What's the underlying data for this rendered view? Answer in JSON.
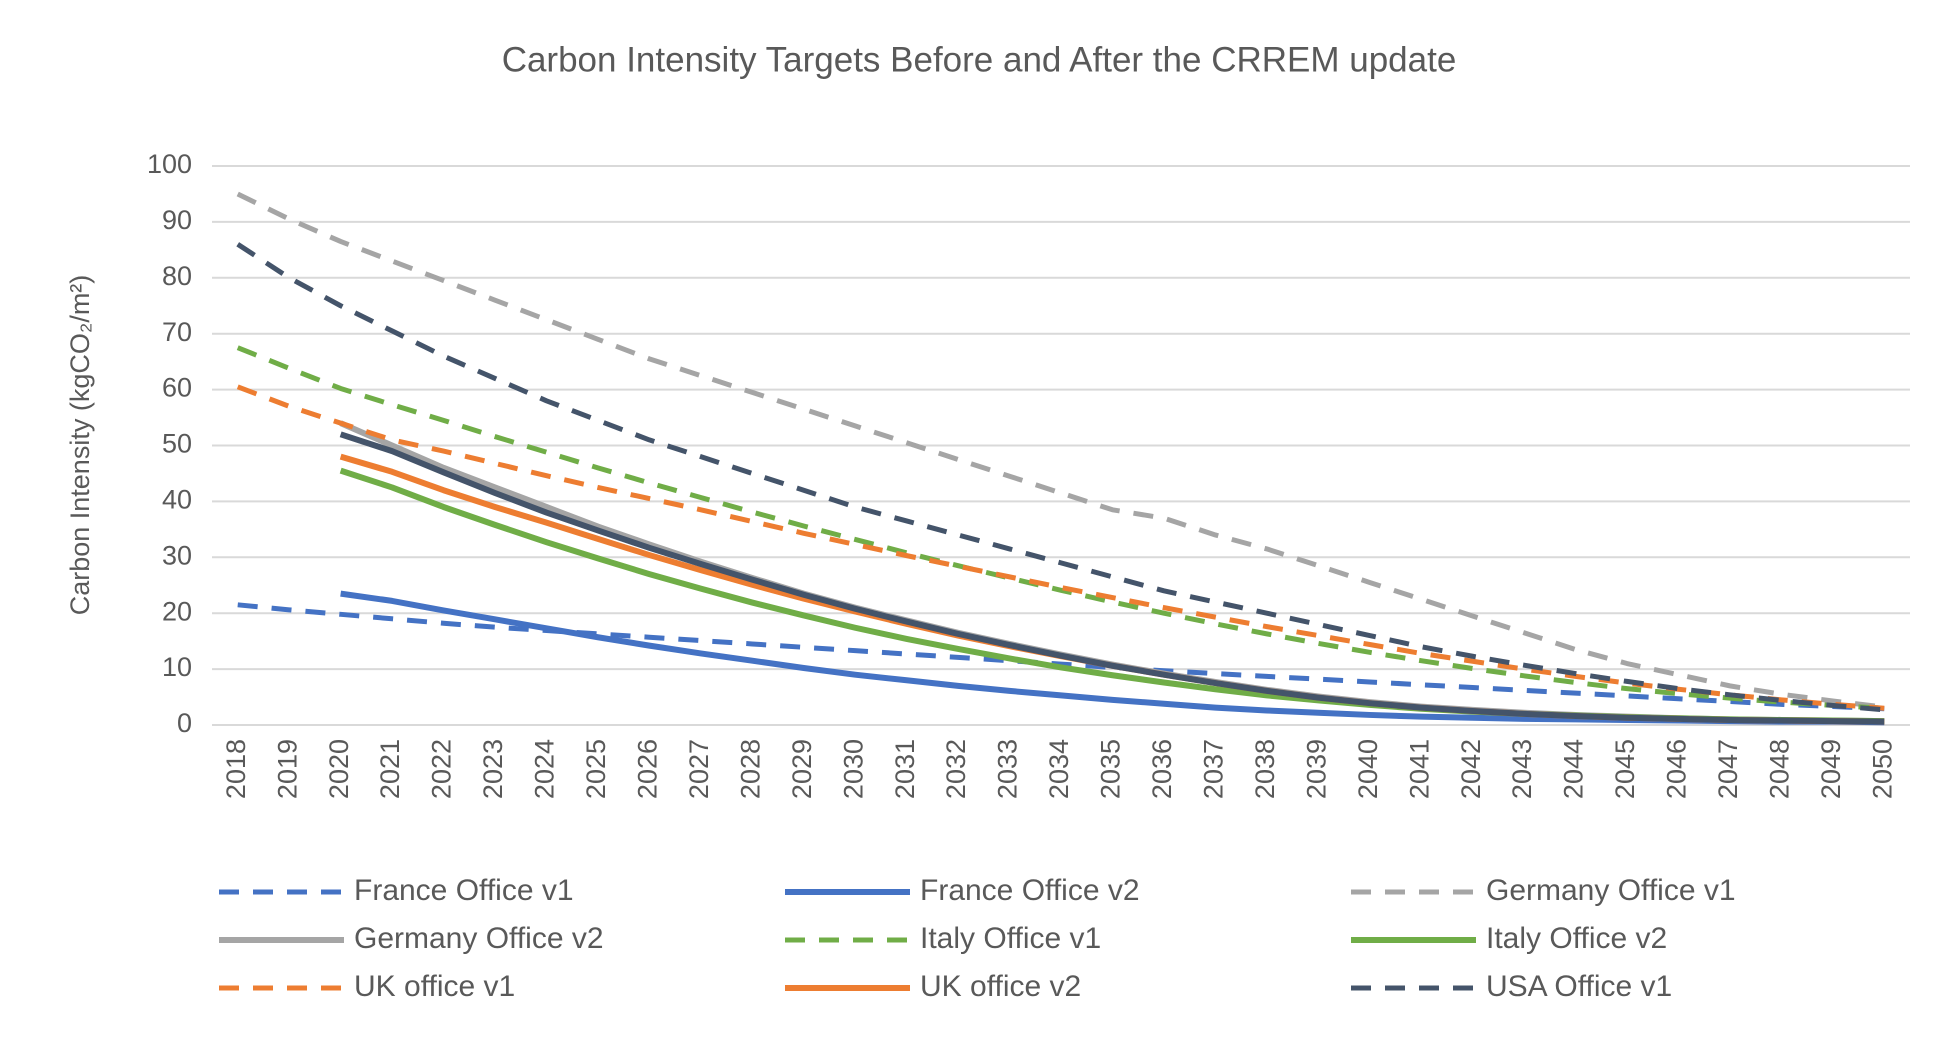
{
  "chart_data": {
    "type": "line",
    "title": "Carbon Intensity Targets Before and After the CRREM update",
    "y_label": "Carbon Intensity (kgCO₂/m²)",
    "categories": [
      "2018",
      "2019",
      "2020",
      "2021",
      "2022",
      "2023",
      "2024",
      "2025",
      "2026",
      "2027",
      "2028",
      "2029",
      "2030",
      "2031",
      "2032",
      "2033",
      "2034",
      "2035",
      "2036",
      "2037",
      "2038",
      "2039",
      "2040",
      "2041",
      "2042",
      "2043",
      "2044",
      "2045",
      "2046",
      "2047",
      "2048",
      "2049",
      "2050"
    ],
    "ylim": [
      0,
      100
    ],
    "yticks": [
      0,
      10,
      20,
      30,
      40,
      50,
      60,
      70,
      80,
      90,
      100
    ],
    "grid": true,
    "legend": "bottom",
    "series": [
      {
        "name": "France Office v1",
        "color": "#4472c4",
        "dash": true,
        "values": [
          21.5,
          20.6,
          19.8,
          19,
          18.2,
          17.5,
          16.9,
          16.3,
          15.7,
          15.1,
          14.5,
          13.9,
          13.3,
          12.7,
          12.1,
          11.5,
          10.9,
          10.3,
          9.7,
          9.2,
          8.7,
          8.2,
          7.7,
          7.2,
          6.7,
          6.2,
          5.7,
          5.2,
          4.7,
          4.2,
          3.7,
          3.3,
          2.9
        ]
      },
      {
        "name": "France Office v2",
        "color": "#4472c4",
        "dash": false,
        "values": [
          null,
          null,
          23.5,
          22.2,
          20.5,
          18.9,
          17.3,
          15.7,
          14.2,
          12.8,
          11.5,
          10.2,
          9,
          8,
          7,
          6.1,
          5.3,
          4.5,
          3.8,
          3.1,
          2.6,
          2.2,
          1.8,
          1.5,
          1.3,
          1.1,
          1,
          0.9,
          0.8,
          0.7,
          0.6,
          0.6,
          0.5
        ]
      },
      {
        "name": "Germany Office v1",
        "color": "#a5a5a5",
        "dash": true,
        "values": [
          95,
          90.5,
          86.5,
          83,
          79.5,
          76,
          72.5,
          69,
          65.5,
          62.5,
          59.5,
          56.5,
          53.5,
          50.5,
          47.5,
          44.5,
          41.5,
          38.5,
          37,
          34,
          31.5,
          28.5,
          25.5,
          22.5,
          19.5,
          16.5,
          13.5,
          11,
          9,
          7,
          5.5,
          4.3,
          3.2
        ]
      },
      {
        "name": "Germany Office v2",
        "color": "#a5a5a5",
        "dash": false,
        "values": [
          null,
          null,
          54,
          50,
          46,
          42.5,
          39,
          35.5,
          32.3,
          29.2,
          26.3,
          23.5,
          21,
          18.7,
          16.5,
          14.5,
          12.6,
          10.8,
          9.2,
          7.7,
          6.3,
          5.1,
          4.1,
          3.3,
          2.7,
          2.2,
          1.8,
          1.5,
          1.2,
          1,
          0.9,
          0.8,
          0.7
        ]
      },
      {
        "name": "Italy Office v1",
        "color": "#70ad47",
        "dash": true,
        "values": [
          67.5,
          63.8,
          60.2,
          57.3,
          54.5,
          51.6,
          48.8,
          46,
          43.3,
          40.7,
          38.1,
          35.6,
          33.2,
          30.8,
          28.5,
          26.3,
          24.1,
          22,
          20,
          18.1,
          16.3,
          14.6,
          13,
          11.5,
          10.1,
          8.8,
          7.6,
          6.5,
          5.6,
          4.8,
          4.1,
          3.5,
          3
        ]
      },
      {
        "name": "Italy Office v2",
        "color": "#70ad47",
        "dash": false,
        "values": [
          null,
          null,
          45.5,
          42.5,
          39,
          35.8,
          32.7,
          29.8,
          27,
          24.4,
          21.9,
          19.6,
          17.4,
          15.4,
          13.6,
          11.9,
          10.3,
          8.9,
          7.6,
          6.4,
          5.3,
          4.4,
          3.6,
          2.9,
          2.4,
          2,
          1.7,
          1.4,
          1.2,
          1,
          0.9,
          0.8,
          0.7
        ]
      },
      {
        "name": "UK office v1",
        "color": "#ed7d31",
        "dash": true,
        "values": [
          60.5,
          57,
          54,
          51,
          49,
          46.8,
          44.6,
          42.5,
          40.5,
          38.5,
          36.4,
          34.3,
          32.3,
          30.3,
          28.4,
          26.5,
          24.6,
          22.8,
          21,
          19.3,
          17.6,
          16,
          14.4,
          12.8,
          11.4,
          10,
          8.7,
          7.5,
          6.4,
          5.4,
          4.5,
          3.7,
          3
        ]
      },
      {
        "name": "UK office v2",
        "color": "#ed7d31",
        "dash": false,
        "values": [
          null,
          null,
          48,
          45.3,
          42,
          39,
          36.2,
          33.3,
          30.4,
          27.7,
          25.1,
          22.6,
          20.3,
          18.1,
          16,
          14.1,
          12.3,
          10.6,
          9,
          7.5,
          6.1,
          4.9,
          3.9,
          3.1,
          2.5,
          2,
          1.6,
          1.3,
          1.1,
          0.9,
          0.8,
          0.7,
          0.6
        ]
      },
      {
        "name": "USA Office v1",
        "color": "#44546a",
        "dash": true,
        "values": [
          86,
          80,
          75,
          70.5,
          66,
          62,
          58,
          54.5,
          51,
          48,
          45,
          42,
          39,
          36.5,
          34,
          31.5,
          29,
          26.5,
          24,
          22,
          20,
          18,
          16,
          14,
          12.3,
          10.7,
          9.2,
          7.8,
          6.5,
          5.4,
          4.4,
          3.5,
          2.7
        ]
      },
      {
        "color": "#44546a",
        "dash": false,
        "values": [
          null,
          null,
          52,
          49,
          45.2,
          41.5,
          38,
          34.8,
          31.7,
          28.8,
          26,
          23.3,
          20.8,
          18.5,
          16.3,
          14.3,
          12.4,
          10.6,
          9,
          7.5,
          6.1,
          4.9,
          3.9,
          3.1,
          2.5,
          2,
          1.6,
          1.3,
          1.1,
          0.9,
          0.8,
          0.7,
          0.6
        ]
      }
    ]
  }
}
